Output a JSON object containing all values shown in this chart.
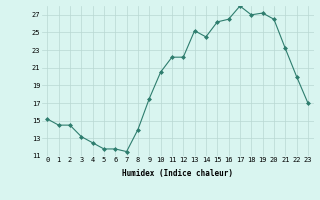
{
  "x": [
    0,
    1,
    2,
    3,
    4,
    5,
    6,
    7,
    8,
    9,
    10,
    11,
    12,
    13,
    14,
    15,
    16,
    17,
    18,
    19,
    20,
    21,
    22,
    23
  ],
  "y": [
    15.2,
    14.5,
    14.5,
    13.2,
    12.5,
    11.8,
    11.8,
    11.5,
    14.0,
    17.5,
    20.5,
    22.2,
    22.2,
    25.2,
    24.5,
    26.2,
    26.5,
    28.0,
    27.0,
    27.2,
    26.5,
    23.2,
    20.0,
    17.0
  ],
  "line_color": "#2e7d6e",
  "marker": "D",
  "marker_size": 2.0,
  "bg_color": "#d9f5f0",
  "grid_color": "#b8d8d2",
  "xlabel": "Humidex (Indice chaleur)",
  "xlim": [
    -0.5,
    23.5
  ],
  "ylim": [
    11,
    28
  ],
  "yticks": [
    11,
    13,
    15,
    17,
    19,
    21,
    23,
    25,
    27
  ],
  "xlabel_fontsize": 5.5,
  "tick_fontsize": 5.0,
  "linewidth": 0.8
}
